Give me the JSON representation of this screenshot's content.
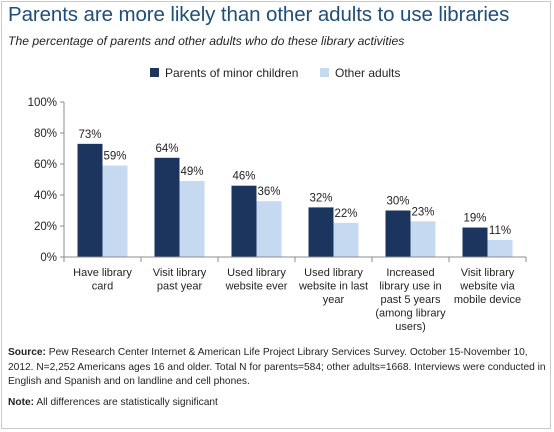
{
  "header": {
    "title": "Parents are more likely than other adults to use libraries",
    "subtitle": "The percentage of parents and other adults who do these library activities"
  },
  "chart_data": {
    "type": "bar",
    "title": "",
    "xlabel": "",
    "ylabel": "",
    "ylim": [
      0,
      100
    ],
    "yticks": [
      "0%",
      "20%",
      "40%",
      "60%",
      "80%",
      "100%"
    ],
    "legend_position": "top",
    "categories": [
      [
        "Have library",
        "card"
      ],
      [
        "Visit library",
        "past year"
      ],
      [
        "Used library",
        "website ever"
      ],
      [
        "Used library",
        "website in last",
        "year"
      ],
      [
        "Increased",
        "library use in",
        "past 5 years",
        "(among library",
        "users)"
      ],
      [
        "Visit library",
        "website via",
        "mobile device"
      ]
    ],
    "series": [
      {
        "name": "Parents of minor children",
        "color": "#1b355e",
        "values": [
          73,
          64,
          46,
          32,
          30,
          19
        ]
      },
      {
        "name": "Other adults",
        "color": "#c5d9f1",
        "values": [
          59,
          49,
          36,
          22,
          23,
          11
        ]
      }
    ],
    "grid": false
  },
  "notes": {
    "source_label": "Source:",
    "source_text": "Pew Research Center Internet & American Life Project Library Services Survey. October 15-November 10, 2012. N=2,252 Americans ages 16 and older. Total N for parents=584; other adults=1668. Interviews were conducted in English and Spanish and on landline and cell phones.",
    "note_label": "Note:",
    "note_text": "All differences are statistically significant"
  }
}
